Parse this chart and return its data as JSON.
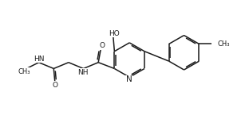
{
  "bg_color": "#ffffff",
  "line_color": "#1a1a1a",
  "line_width": 1.1,
  "font_size": 6.5,
  "fig_width": 3.12,
  "fig_height": 1.45,
  "dpi": 100,
  "xlim": [
    0,
    100
  ],
  "ylim": [
    0,
    46
  ]
}
